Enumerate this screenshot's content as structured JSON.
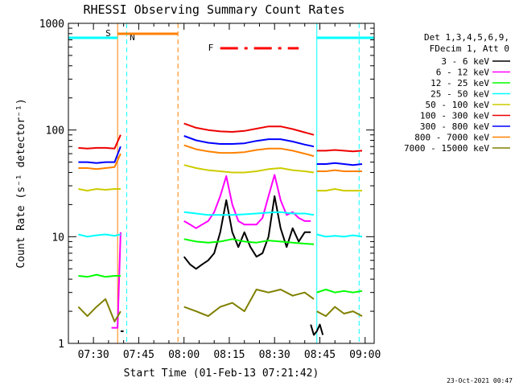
{
  "chart_data": {
    "type": "line",
    "title": "RHESSI Observing Summary Count Rates",
    "xlabel": "Start Time (01-Feb-13 07:21:42)",
    "ylabel": "Count Rate (s⁻¹ detector⁻¹)",
    "y_scale": "log",
    "ylim": [
      1,
      1000
    ],
    "y_ticks": [
      {
        "value": 1,
        "label": "1"
      },
      {
        "value": 10,
        "label": "10"
      },
      {
        "value": 100,
        "label": "100"
      },
      {
        "value": 1000,
        "label": "1000"
      }
    ],
    "xlim": [
      "07:21:42",
      "09:03:00"
    ],
    "x_ticks": [
      "07:30",
      "07:45",
      "08:00",
      "08:15",
      "08:30",
      "08:45",
      "09:00"
    ],
    "legend": {
      "position": "right",
      "header": [
        "Det 1,3,4,5,6,9,",
        "FDecim 1, Att 0"
      ],
      "entries": [
        {
          "label": "3 - 6 keV",
          "color": "#000000"
        },
        {
          "label": "6 - 12 keV",
          "color": "#ff00ff"
        },
        {
          "label": "12 - 25 keV",
          "color": "#00ff00"
        },
        {
          "label": "25 - 50 keV",
          "color": "#00ffff"
        },
        {
          "label": "50 - 100 keV",
          "color": "#cccc00"
        },
        {
          "label": "100 - 300 keV",
          "color": "#ee0000"
        },
        {
          "label": "300 - 800 keV",
          "color": "#0000ff"
        },
        {
          "label": "800 - 7000 keV",
          "color": "#ff8000"
        },
        {
          "label": "7000 - 15000 keV",
          "color": "#808000"
        }
      ]
    },
    "series": [
      {
        "name": "3 - 6 keV",
        "color": "#000000",
        "segments": [
          {
            "x": [
              "07:39",
              "07:40"
            ],
            "y": [
              1.3,
              1.3
            ]
          },
          {
            "x": [
              "08:00",
              "08:02",
              "08:04",
              "08:06",
              "08:08",
              "08:10",
              "08:12",
              "08:14",
              "08:16",
              "08:18",
              "08:20",
              "08:22",
              "08:24",
              "08:26",
              "08:28",
              "08:30",
              "08:32",
              "08:34",
              "08:36",
              "08:38",
              "08:40",
              "08:42"
            ],
            "y": [
              6.5,
              5.5,
              5,
              5.5,
              6,
              7,
              11,
              22,
              11,
              8,
              11,
              8,
              6.5,
              7,
              10,
              24,
              12,
              8,
              12,
              9,
              11,
              11
            ]
          },
          {
            "x": [
              "08:42",
              "08:43",
              "08:44",
              "08:45",
              "08:46"
            ],
            "y": [
              1.5,
              1.2,
              1.3,
              1.5,
              1.2
            ]
          }
        ]
      },
      {
        "name": "6 - 12 keV",
        "color": "#ff00ff",
        "segments": [
          {
            "x": [
              "07:36",
              "07:37",
              "07:38",
              "07:39"
            ],
            "y": [
              1.4,
              1.4,
              1.4,
              11
            ]
          },
          {
            "x": [
              "08:00",
              "08:02",
              "08:04",
              "08:06",
              "08:08",
              "08:10",
              "08:12",
              "08:14",
              "08:16",
              "08:18",
              "08:20",
              "08:22",
              "08:24",
              "08:26",
              "08:28",
              "08:30",
              "08:32",
              "08:34",
              "08:36",
              "08:38",
              "08:40",
              "08:42"
            ],
            "y": [
              14,
              13,
              12,
              13,
              14,
              17,
              24,
              37,
              20,
              14,
              13,
              13,
              13,
              15,
              24,
              38,
              22,
              16,
              17,
              15,
              14,
              14
            ]
          }
        ]
      },
      {
        "name": "12 - 25 keV",
        "color": "#00ff00",
        "segments": [
          {
            "x": [
              "07:25",
              "07:28",
              "07:31",
              "07:34",
              "07:37",
              "07:39"
            ],
            "y": [
              4.3,
              4.2,
              4.4,
              4.2,
              4.3,
              4.3
            ]
          },
          {
            "x": [
              "08:00",
              "08:04",
              "08:08",
              "08:12",
              "08:16",
              "08:20",
              "08:24",
              "08:28",
              "08:32",
              "08:36",
              "08:40",
              "08:43"
            ],
            "y": [
              9.5,
              9,
              8.8,
              9,
              9.5,
              9,
              8.8,
              9.2,
              9,
              8.8,
              8.6,
              8.5
            ]
          },
          {
            "x": [
              "08:44",
              "08:47",
              "08:50",
              "08:53",
              "08:56",
              "08:59"
            ],
            "y": [
              3,
              3.2,
              3,
              3.1,
              3,
              3.1
            ]
          }
        ]
      },
      {
        "name": "25 - 50 keV",
        "color": "#00ffff",
        "segments": [
          {
            "x": [
              "07:25",
              "07:28",
              "07:31",
              "07:34",
              "07:37",
              "07:39"
            ],
            "y": [
              10.5,
              10,
              10.3,
              10.5,
              10.2,
              10.5
            ]
          },
          {
            "x": [
              "08:00",
              "08:04",
              "08:08",
              "08:12",
              "08:16",
              "08:20",
              "08:24",
              "08:28",
              "08:32",
              "08:36",
              "08:40",
              "08:43"
            ],
            "y": [
              17,
              16.5,
              16,
              16,
              16,
              16.2,
              16.5,
              16.8,
              17,
              16.5,
              16.5,
              16
            ]
          },
          {
            "x": [
              "08:44",
              "08:47",
              "08:50",
              "08:53",
              "08:56",
              "08:59"
            ],
            "y": [
              10.5,
              10,
              10.2,
              10,
              10.3,
              10
            ]
          }
        ]
      },
      {
        "name": "50 - 100 keV",
        "color": "#cccc00",
        "segments": [
          {
            "x": [
              "07:25",
              "07:28",
              "07:31",
              "07:34",
              "07:37",
              "07:39"
            ],
            "y": [
              28,
              27,
              28,
              27.5,
              28,
              28
            ]
          },
          {
            "x": [
              "08:00",
              "08:04",
              "08:08",
              "08:12",
              "08:16",
              "08:20",
              "08:24",
              "08:28",
              "08:32",
              "08:36",
              "08:40",
              "08:43"
            ],
            "y": [
              47,
              44,
              42,
              41,
              40,
              40,
              41,
              43,
              44,
              42,
              41,
              40
            ]
          },
          {
            "x": [
              "08:44",
              "08:47",
              "08:50",
              "08:53",
              "08:56",
              "08:59"
            ],
            "y": [
              27,
              27,
              28,
              27,
              27,
              27
            ]
          }
        ]
      },
      {
        "name": "100 - 300 keV",
        "color": "#ee0000",
        "segments": [
          {
            "x": [
              "07:25",
              "07:28",
              "07:31",
              "07:34",
              "07:37",
              "07:39"
            ],
            "y": [
              68,
              67,
              68,
              68,
              67,
              90
            ]
          },
          {
            "x": [
              "08:00",
              "08:04",
              "08:08",
              "08:12",
              "08:16",
              "08:20",
              "08:24",
              "08:28",
              "08:32",
              "08:36",
              "08:40",
              "08:43"
            ],
            "y": [
              115,
              105,
              100,
              97,
              96,
              98,
              103,
              108,
              108,
              102,
              95,
              90
            ]
          },
          {
            "x": [
              "08:44",
              "08:47",
              "08:50",
              "08:53",
              "08:56",
              "08:59"
            ],
            "y": [
              64,
              64,
              65,
              64,
              63,
              64
            ]
          }
        ]
      },
      {
        "name": "300 - 800 keV",
        "color": "#0000ff",
        "segments": [
          {
            "x": [
              "07:25",
              "07:28",
              "07:31",
              "07:34",
              "07:37",
              "07:39"
            ],
            "y": [
              50,
              50,
              49,
              50,
              50,
              70
            ]
          },
          {
            "x": [
              "08:00",
              "08:04",
              "08:08",
              "08:12",
              "08:16",
              "08:20",
              "08:24",
              "08:28",
              "08:32",
              "08:36",
              "08:40",
              "08:43"
            ],
            "y": [
              88,
              80,
              76,
              74,
              74,
              75,
              79,
              82,
              82,
              78,
              73,
              70
            ]
          },
          {
            "x": [
              "08:44",
              "08:47",
              "08:50",
              "08:53",
              "08:56",
              "08:59"
            ],
            "y": [
              48,
              48,
              49,
              48,
              47,
              48
            ]
          }
        ]
      },
      {
        "name": "800 - 7000 keV",
        "color": "#ff8000",
        "segments": [
          {
            "x": [
              "07:25",
              "07:28",
              "07:31",
              "07:34",
              "07:37",
              "07:39"
            ],
            "y": [
              44,
              44,
              43,
              44,
              45,
              60
            ]
          },
          {
            "x": [
              "08:00",
              "08:04",
              "08:08",
              "08:12",
              "08:16",
              "08:20",
              "08:24",
              "08:28",
              "08:32",
              "08:36",
              "08:40",
              "08:43"
            ],
            "y": [
              72,
              66,
              63,
              61,
              61,
              62,
              65,
              67,
              67,
              64,
              60,
              57
            ]
          },
          {
            "x": [
              "08:44",
              "08:47",
              "08:50",
              "08:53",
              "08:56",
              "08:59"
            ],
            "y": [
              41,
              41,
              42,
              41,
              41,
              41
            ]
          }
        ]
      },
      {
        "name": "7000 - 15000 keV",
        "color": "#808000",
        "segments": [
          {
            "x": [
              "07:25",
              "07:28",
              "07:31",
              "07:34",
              "07:37",
              "07:39"
            ],
            "y": [
              2.2,
              1.8,
              2.2,
              2.6,
              1.6,
              2
            ]
          },
          {
            "x": [
              "08:00",
              "08:04",
              "08:08",
              "08:12",
              "08:16",
              "08:20",
              "08:24",
              "08:28",
              "08:32",
              "08:36",
              "08:40",
              "08:43"
            ],
            "y": [
              2.2,
              2,
              1.8,
              2.2,
              2.4,
              2,
              3.2,
              3,
              3.2,
              2.8,
              3,
              2.6
            ]
          },
          {
            "x": [
              "08:44",
              "08:47",
              "08:50",
              "08:53",
              "08:56",
              "08:59"
            ],
            "y": [
              2,
              1.8,
              2.2,
              1.9,
              2,
              1.8
            ]
          }
        ]
      }
    ],
    "annotations": {
      "saa": {
        "label": "S",
        "color": "#ff8000",
        "start": "07:38",
        "end": "07:58"
      },
      "night": {
        "label": "N",
        "color": "#00ffff",
        "start": "07:38",
        "end": "08:44"
      },
      "flare": {
        "label": "F",
        "color": "#ff0000",
        "start": "08:12",
        "end": "08:38"
      },
      "vertical_markers": [
        {
          "time": "07:38",
          "color": "#ff8000",
          "style": "solid"
        },
        {
          "time": "07:41",
          "color": "#00ffff",
          "style": "dashed"
        },
        {
          "time": "07:58",
          "color": "#ff8000",
          "style": "dashed"
        },
        {
          "time": "08:44",
          "color": "#00ffff",
          "style": "solid"
        },
        {
          "time": "08:58",
          "color": "#00ffff",
          "style": "dashed"
        }
      ]
    },
    "grid": false
  },
  "footer": {
    "timestamp": "23-Oct-2021 00:47"
  }
}
